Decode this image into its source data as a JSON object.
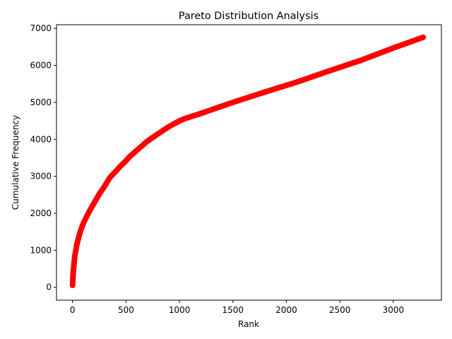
{
  "chart_data": {
    "type": "scatter",
    "title": "Pareto Distribution Analysis",
    "xlabel": "Rank",
    "ylabel": "Cumulative Frequency",
    "xlim": [
      -150,
      3450
    ],
    "ylim": [
      -350,
      7100
    ],
    "xticks": [
      0,
      500,
      1000,
      1500,
      2000,
      2500,
      3000
    ],
    "yticks": [
      0,
      1000,
      2000,
      3000,
      4000,
      5000,
      6000,
      7000
    ],
    "grid": false,
    "legend": "none",
    "series": [
      {
        "color": "#ff0000",
        "x": [
          0,
          2,
          5,
          10,
          20,
          40,
          60,
          80,
          100,
          130,
          160,
          200,
          250,
          300,
          350,
          400,
          450,
          500,
          530,
          600,
          700,
          800,
          900,
          1000,
          1050,
          1200,
          1500,
          1800,
          2100,
          2400,
          2700,
          3000,
          3280
        ],
        "y": [
          50,
          150,
          330,
          520,
          820,
          1150,
          1380,
          1570,
          1720,
          1900,
          2070,
          2270,
          2520,
          2730,
          2970,
          3120,
          3280,
          3420,
          3520,
          3700,
          3950,
          4150,
          4340,
          4500,
          4560,
          4700,
          5000,
          5280,
          5550,
          5850,
          6140,
          6470,
          6760
        ]
      }
    ]
  }
}
